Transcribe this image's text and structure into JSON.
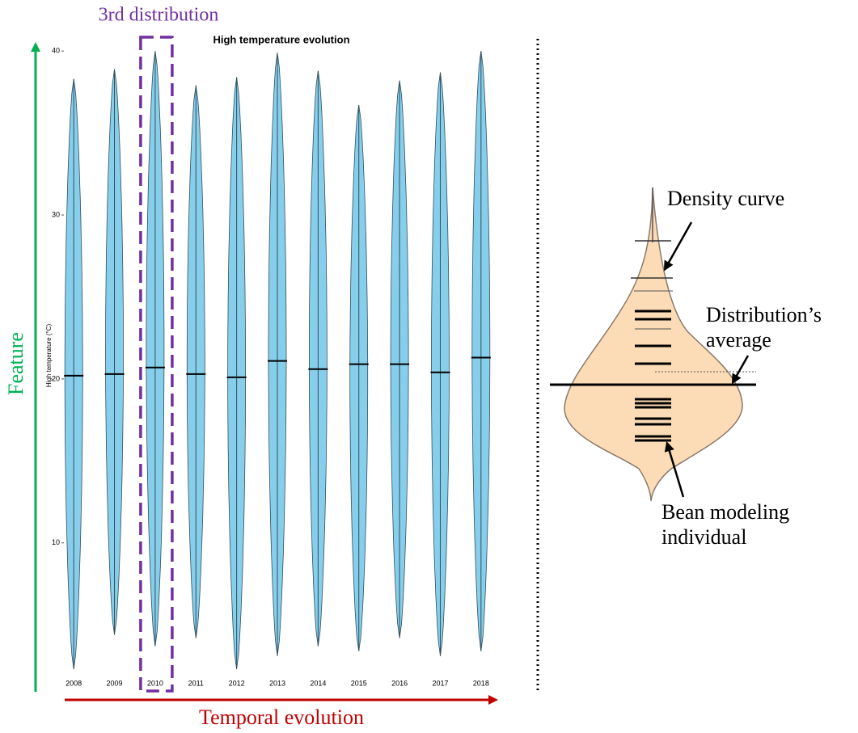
{
  "chart_data": {
    "type": "bean",
    "title": "High temperature evolution",
    "y_label": "High temperature (°C)",
    "categories": [
      "2008",
      "2009",
      "2010",
      "2011",
      "2012",
      "2013",
      "2014",
      "2015",
      "2016",
      "2017",
      "2018"
    ],
    "values": [
      20.2,
      20.3,
      20.7,
      20.3,
      20.1,
      21.1,
      20.6,
      20.9,
      20.9,
      20.4,
      21.3
    ],
    "max": [
      38.3,
      38.9,
      40.0,
      37.9,
      38.4,
      39.9,
      38.8,
      36.7,
      38.2,
      38.7,
      40.0
    ],
    "min": [
      2.3,
      4.4,
      3.7,
      4.2,
      2.3,
      3.1,
      3.7,
      3.4,
      4.2,
      3.1,
      3.4
    ],
    "color": "#87ceeb",
    "ylim": [
      2.2,
      40.6
    ],
    "yticks": [
      10,
      20,
      30,
      40
    ],
    "highlight_index": 2,
    "annotations": {
      "highlight": "3rd distribution",
      "y_arrow": "Feature",
      "x_arrow": "Temporal evolution"
    }
  },
  "legend_diagram": {
    "density": "Density curve",
    "average_line1": "Distribution’s",
    "average_line2": "average",
    "bean_line1": "Bean modeling",
    "bean_line2": "individual"
  }
}
